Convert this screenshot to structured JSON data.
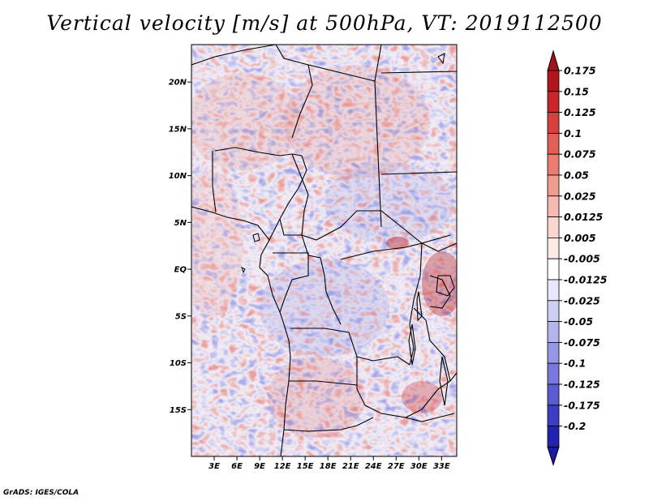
{
  "title": "Vertical velocity [m/s] at 500hPa, VT: 2019112500",
  "credit": "GrADS: IGES/COLA",
  "map": {
    "type": "shaded-field",
    "variable": "vertical velocity",
    "level": "500hPa",
    "valid_time": "2019112500",
    "lon_range": [
      0,
      35
    ],
    "lat_range": [
      -20,
      24
    ],
    "lat_ticks": [
      {
        "label": "20N",
        "lat": 20
      },
      {
        "label": "15N",
        "lat": 15
      },
      {
        "label": "10N",
        "lat": 10
      },
      {
        "label": "5N",
        "lat": 5
      },
      {
        "label": "EQ",
        "lat": 0
      },
      {
        "label": "5S",
        "lat": -5
      },
      {
        "label": "10S",
        "lat": -10
      },
      {
        "label": "15S",
        "lat": -15
      }
    ],
    "lon_ticks": [
      {
        "label": "3E",
        "lon": 3
      },
      {
        "label": "6E",
        "lon": 6
      },
      {
        "label": "9E",
        "lon": 9
      },
      {
        "label": "12E",
        "lon": 12
      },
      {
        "label": "15E",
        "lon": 15
      },
      {
        "label": "18E",
        "lon": 18
      },
      {
        "label": "21E",
        "lon": 21
      },
      {
        "label": "24E",
        "lon": 24
      },
      {
        "label": "27E",
        "lon": 27
      },
      {
        "label": "30E",
        "lon": 30
      },
      {
        "label": "33E",
        "lon": 33
      }
    ]
  },
  "colorbar": {
    "levels": [
      {
        "label": "0.175",
        "color": "#b3141b"
      },
      {
        "label": "0.15",
        "color": "#c8262b"
      },
      {
        "label": "0.125",
        "color": "#d9403d"
      },
      {
        "label": "0.1",
        "color": "#e35f56"
      },
      {
        "label": "0.075",
        "color": "#ec7c70"
      },
      {
        "label": "0.05",
        "color": "#f29b8f"
      },
      {
        "label": "0.025",
        "color": "#f7bab1"
      },
      {
        "label": "0.0125",
        "color": "#fbd6d0"
      },
      {
        "label": "0.005",
        "color": "#fdebe8"
      },
      {
        "label": "-0.005",
        "color": "#ffffff"
      },
      {
        "label": "-0.0125",
        "color": "#e8e8fb"
      },
      {
        "label": "-0.025",
        "color": "#cfcff5"
      },
      {
        "label": "-0.05",
        "color": "#b3b3ee"
      },
      {
        "label": "-0.075",
        "color": "#9696e6"
      },
      {
        "label": "-0.1",
        "color": "#7878dd"
      },
      {
        "label": "-0.125",
        "color": "#5a5ad2"
      },
      {
        "label": "-0.175",
        "color": "#3c3cc4"
      },
      {
        "label": "-0.2",
        "color": "#2222b2"
      }
    ],
    "top_color": "#a0131a",
    "bottom_color": "#1a1aa3"
  }
}
